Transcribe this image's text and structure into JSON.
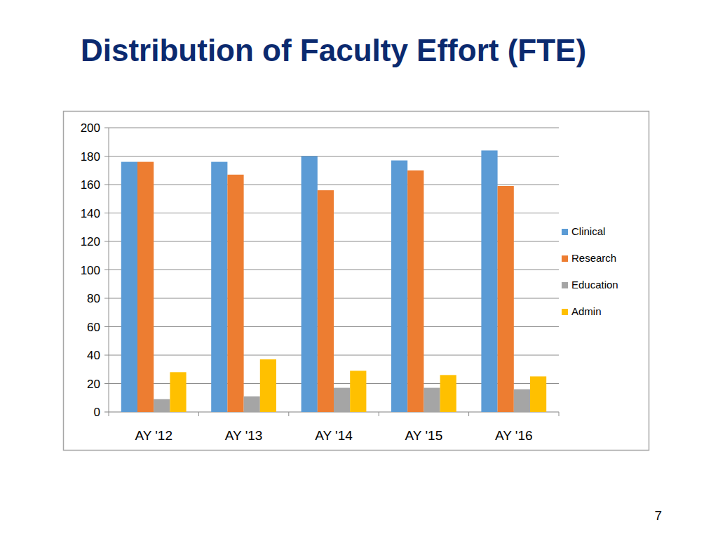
{
  "chart_data": {
    "type": "bar",
    "title": "Distribution of Faculty Effort (FTE)",
    "categories": [
      "AY '12",
      "AY '13",
      "AY '14",
      "AY '15",
      "AY '16"
    ],
    "series": [
      {
        "name": "Clinical",
        "color": "#5b9bd5",
        "values": [
          176,
          176,
          180,
          177,
          184
        ]
      },
      {
        "name": "Research",
        "color": "#ed7d31",
        "values": [
          176,
          167,
          156,
          170,
          159
        ]
      },
      {
        "name": "Education",
        "color": "#a5a5a5",
        "values": [
          9,
          11,
          17,
          17,
          16
        ]
      },
      {
        "name": "Admin",
        "color": "#ffc000",
        "values": [
          28,
          37,
          29,
          26,
          25
        ]
      }
    ],
    "ylim": [
      0,
      200
    ],
    "yticks": [
      0,
      20,
      40,
      60,
      80,
      100,
      120,
      140,
      160,
      180,
      200
    ],
    "grid": true,
    "legend": "right"
  },
  "slide_number": "7"
}
